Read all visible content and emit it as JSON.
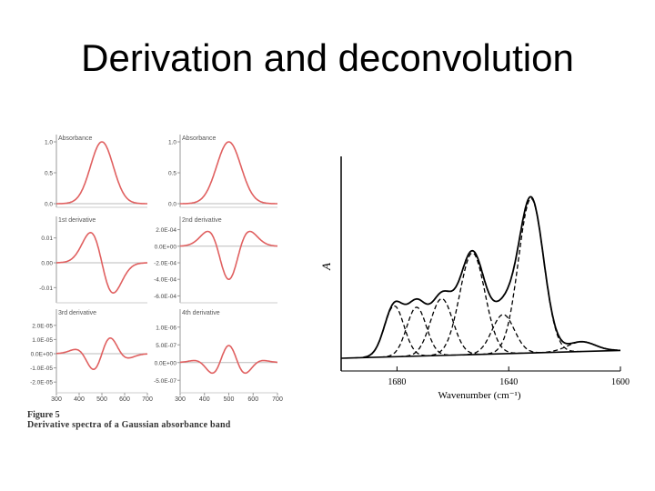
{
  "slide": {
    "title": "Derivation and deconvolution"
  },
  "figure5": {
    "caption_number": "Figure 5",
    "caption_text": "Derivative spectra of a Gaussian absorbance band",
    "xticks": [
      "300",
      "400",
      "500",
      "600",
      "700"
    ],
    "curve_color": "#e06060"
  },
  "chart_data": [
    {
      "type": "line",
      "title": "Absorbance",
      "xlabel": "",
      "ylabel": "",
      "x_range": [
        300,
        700
      ],
      "ylim": [
        0.0,
        1.0
      ],
      "yticks": [
        "1.0",
        "0.5",
        "0.0"
      ],
      "ytick_values": [
        1.0,
        0.5,
        0.0
      ],
      "series": [
        {
          "function": "gaussian",
          "center": 500,
          "sigma": 50,
          "amplitude": 1.0
        }
      ]
    },
    {
      "type": "line",
      "title": "Absorbance",
      "xlabel": "",
      "ylabel": "",
      "x_range": [
        300,
        700
      ],
      "ylim": [
        0.0,
        1.0
      ],
      "yticks": [
        "1.0",
        "0.5",
        "0.0"
      ],
      "ytick_values": [
        1.0,
        0.5,
        0.0
      ],
      "series": [
        {
          "function": "gaussian",
          "center": 500,
          "sigma": 50,
          "amplitude": 1.0
        }
      ]
    },
    {
      "type": "line",
      "title": "1st derivative",
      "x_range": [
        300,
        700
      ],
      "ylim": [
        -0.015,
        0.015
      ],
      "yticks": [
        "0.01",
        "0.00",
        "-0.01"
      ],
      "ytick_values": [
        0.01,
        0.0,
        -0.01
      ],
      "series": [
        {
          "function": "gaussian_derivative",
          "order": 1,
          "center": 500,
          "sigma": 50
        }
      ]
    },
    {
      "type": "line",
      "title": "2nd derivative",
      "x_range": [
        300,
        700
      ],
      "ylim": [
        -0.00065,
        0.00025
      ],
      "yticks": [
        "2.0E-04",
        "0.0E+00",
        "-2.0E-04",
        "-4.0E-04",
        "-6.0E-04"
      ],
      "ytick_values": [
        0.0002,
        0.0,
        -0.0002,
        -0.0004,
        -0.0006
      ],
      "series": [
        {
          "function": "gaussian_derivative",
          "order": 2,
          "center": 500,
          "sigma": 50
        }
      ]
    },
    {
      "type": "line",
      "title": "3rd derivative",
      "x_range": [
        300,
        700
      ],
      "ylim": [
        -2.5e-05,
        2.5e-05
      ],
      "yticks": [
        "2.0E-05",
        "1.0E-05",
        "0.0E+00",
        "-1.0E-05",
        "-2.0E-05"
      ],
      "ytick_values": [
        2e-05,
        1e-05,
        0.0,
        -1e-05,
        -2e-05
      ],
      "series": [
        {
          "function": "gaussian_derivative",
          "order": 3,
          "center": 500,
          "sigma": 50
        }
      ]
    },
    {
      "type": "line",
      "title": "4th derivative",
      "x_range": [
        300,
        700
      ],
      "ylim": [
        -7.5e-07,
        1.25e-06
      ],
      "yticks": [
        "1.0E-06",
        "5.0E-07",
        "0.0E+00",
        "-5.0E-07"
      ],
      "ytick_values": [
        1e-06,
        5e-07,
        0.0,
        -5e-07
      ],
      "series": [
        {
          "function": "gaussian_derivative",
          "order": 4,
          "center": 500,
          "sigma": 50
        }
      ]
    },
    {
      "type": "line",
      "title": "",
      "xlabel": "Wavenumber (cm⁻¹)",
      "ylabel": "A",
      "x_reversed": true,
      "x_range": [
        1700,
        1600
      ],
      "xticks": [
        "1680",
        "1640",
        "1600"
      ],
      "xtick_values": [
        1680,
        1640,
        1600
      ],
      "baseline": {
        "x": [
          1700,
          1600
        ],
        "y": [
          0.0,
          0.04
        ]
      },
      "component_bands": [
        {
          "center": 1681,
          "height": 0.26,
          "width": 3.5
        },
        {
          "center": 1673,
          "height": 0.25,
          "width": 3.5
        },
        {
          "center": 1664,
          "height": 0.29,
          "width": 4.0
        },
        {
          "center": 1653,
          "height": 0.52,
          "width": 4.5
        },
        {
          "center": 1642,
          "height": 0.2,
          "width": 4.0
        },
        {
          "center": 1632,
          "height": 0.79,
          "width": 4.5
        },
        {
          "center": 1614,
          "height": 0.05,
          "width": 5.0
        }
      ],
      "sum_curve": "solid line",
      "component_style": "dashed line"
    }
  ]
}
